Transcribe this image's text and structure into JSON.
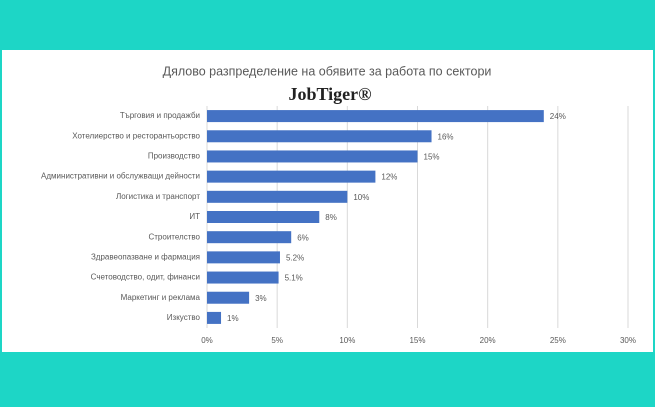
{
  "chart_data": {
    "type": "bar",
    "orientation": "horizontal",
    "title": "Дялово разпределение на обявите за работа по сектори",
    "subtitle": "JobTiger®",
    "categories": [
      "Търговия и продажби",
      "Хотелиерство и ресторантьорство",
      "Производство",
      "Административни и обслужващи дейности",
      "Логистика и транспорт",
      "ИТ",
      "Строителство",
      "Здравеопазване и фармация",
      "Счетоводство, одит, финанси",
      "Маркетинг и реклама",
      "Изкуство"
    ],
    "values": [
      24,
      16,
      15,
      12,
      10,
      8,
      6,
      5.2,
      5.1,
      3,
      1
    ],
    "value_labels": [
      "24%",
      "16%",
      "15%",
      "12%",
      "10%",
      "8%",
      "6%",
      "5.2%",
      "5.1%",
      "3%",
      "1%"
    ],
    "color": "#4472c4",
    "xlim": [
      0,
      30
    ],
    "xticks": [
      {
        "value": 0,
        "label": "0%"
      },
      {
        "value": 5,
        "label": "5%"
      },
      {
        "value": 10,
        "label": "10%"
      },
      {
        "value": 15,
        "label": "15%"
      },
      {
        "value": 20,
        "label": "20%"
      },
      {
        "value": 25,
        "label": "25%"
      },
      {
        "value": 30,
        "label": "30%"
      }
    ],
    "grid": true
  }
}
